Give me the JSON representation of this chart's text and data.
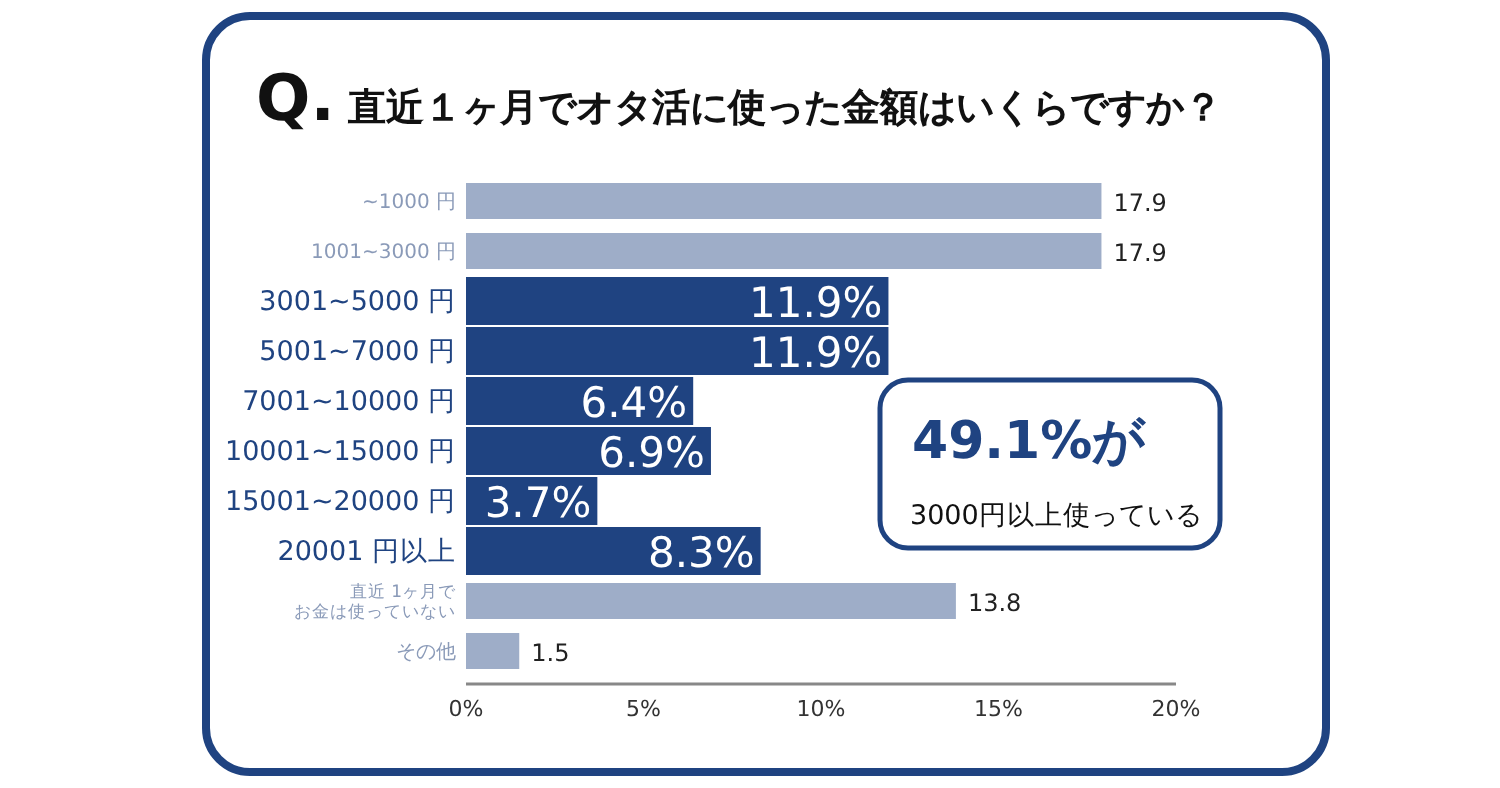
{
  "chart_data": {
    "type": "bar",
    "orientation": "horizontal",
    "title": "Q. 直近１ヶ月でオタ活に使った金額はいくらですか？",
    "categories": [
      "~1000 円",
      "1001~3000 円",
      "3001~5000 円",
      "5001~7000 円",
      "7001~10000 円",
      "10001~15000 円",
      "15001~20000 円",
      "20001 円以上",
      "直近 1ヶ月でお金は使っていない",
      "その他"
    ],
    "values": [
      17.9,
      17.9,
      11.9,
      11.9,
      6.4,
      6.9,
      3.7,
      8.3,
      13.8,
      1.5
    ],
    "colors": [
      "#9eadc8",
      "#9eadc8",
      "#1f4381",
      "#1f4381",
      "#1f4381",
      "#1f4381",
      "#1f4381",
      "#1f4381",
      "#9eadc8",
      "#9eadc8"
    ],
    "value_labels": [
      "17.9",
      "17.9",
      "11.9%",
      "11.9%",
      "6.4%",
      "6.9%",
      "3.7%",
      "8.3%",
      "13.8",
      "1.5"
    ],
    "xlim": [
      0,
      20
    ],
    "xticks": [
      {
        "value": 0,
        "label": "0%"
      },
      {
        "value": 5,
        "label": "5%"
      },
      {
        "value": 10,
        "label": "10%"
      },
      {
        "value": 15,
        "label": "15%"
      },
      {
        "value": 20,
        "label": "20%"
      }
    ],
    "grid": false,
    "annotations": [
      "49.1%が",
      "3000円以上使っている"
    ]
  }
}
